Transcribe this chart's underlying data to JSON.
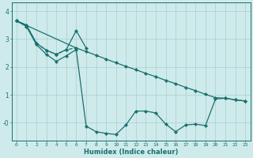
{
  "xlabel": "Humidex (Indice chaleur)",
  "bg_color": "#ceeaea",
  "line_color": "#1a7070",
  "grid_color": "#aacfcf",
  "xlim": [
    -0.5,
    23.5
  ],
  "ylim": [
    -0.65,
    4.3
  ],
  "xticks": [
    0,
    1,
    2,
    3,
    4,
    5,
    6,
    7,
    8,
    9,
    10,
    11,
    12,
    13,
    14,
    15,
    16,
    17,
    18,
    19,
    20,
    21,
    22,
    23
  ],
  "yticks": [
    0,
    1,
    2,
    3,
    4
  ],
  "ytick_labels": [
    "-0",
    "1",
    "2",
    "3",
    "4"
  ],
  "series": [
    {
      "x": [
        0,
        1,
        2,
        3,
        4,
        5,
        6
      ],
      "y": [
        3.65,
        3.5,
        2.85,
        2.6,
        2.45,
        2.62,
        2.68
      ],
      "linestyle": "--",
      "linewidth": 0.9,
      "markersize": 2.2
    },
    {
      "x": [
        0,
        1,
        2,
        3,
        4,
        5,
        6,
        7
      ],
      "y": [
        3.65,
        3.5,
        2.85,
        2.6,
        2.45,
        2.62,
        3.3,
        2.68
      ],
      "linestyle": "-",
      "linewidth": 0.9,
      "markersize": 2.2
    },
    {
      "x": [
        0,
        1,
        2,
        3,
        4,
        5,
        6,
        7,
        8,
        9,
        10,
        11,
        12,
        13,
        14,
        15,
        16,
        17,
        18,
        19,
        20,
        21,
        22,
        23
      ],
      "y": [
        3.65,
        3.45,
        2.8,
        2.45,
        2.2,
        2.4,
        2.62,
        -0.12,
        -0.32,
        -0.38,
        -0.42,
        -0.08,
        0.42,
        0.42,
        0.35,
        -0.05,
        -0.32,
        -0.08,
        -0.05,
        -0.1,
        0.85,
        0.88,
        0.82,
        0.78
      ],
      "linestyle": "-",
      "linewidth": 0.9,
      "markersize": 2.2
    },
    {
      "x": [
        0,
        6,
        7,
        8,
        9,
        10,
        11,
        12,
        13,
        14,
        15,
        16,
        17,
        18,
        19,
        20,
        21,
        22,
        23
      ],
      "y": [
        3.65,
        2.68,
        2.55,
        2.42,
        2.28,
        2.15,
        2.02,
        1.9,
        1.77,
        1.65,
        1.52,
        1.4,
        1.27,
        1.15,
        1.02,
        0.9,
        0.88,
        0.82,
        0.78
      ],
      "linestyle": "-",
      "linewidth": 0.9,
      "markersize": 2.2
    }
  ]
}
